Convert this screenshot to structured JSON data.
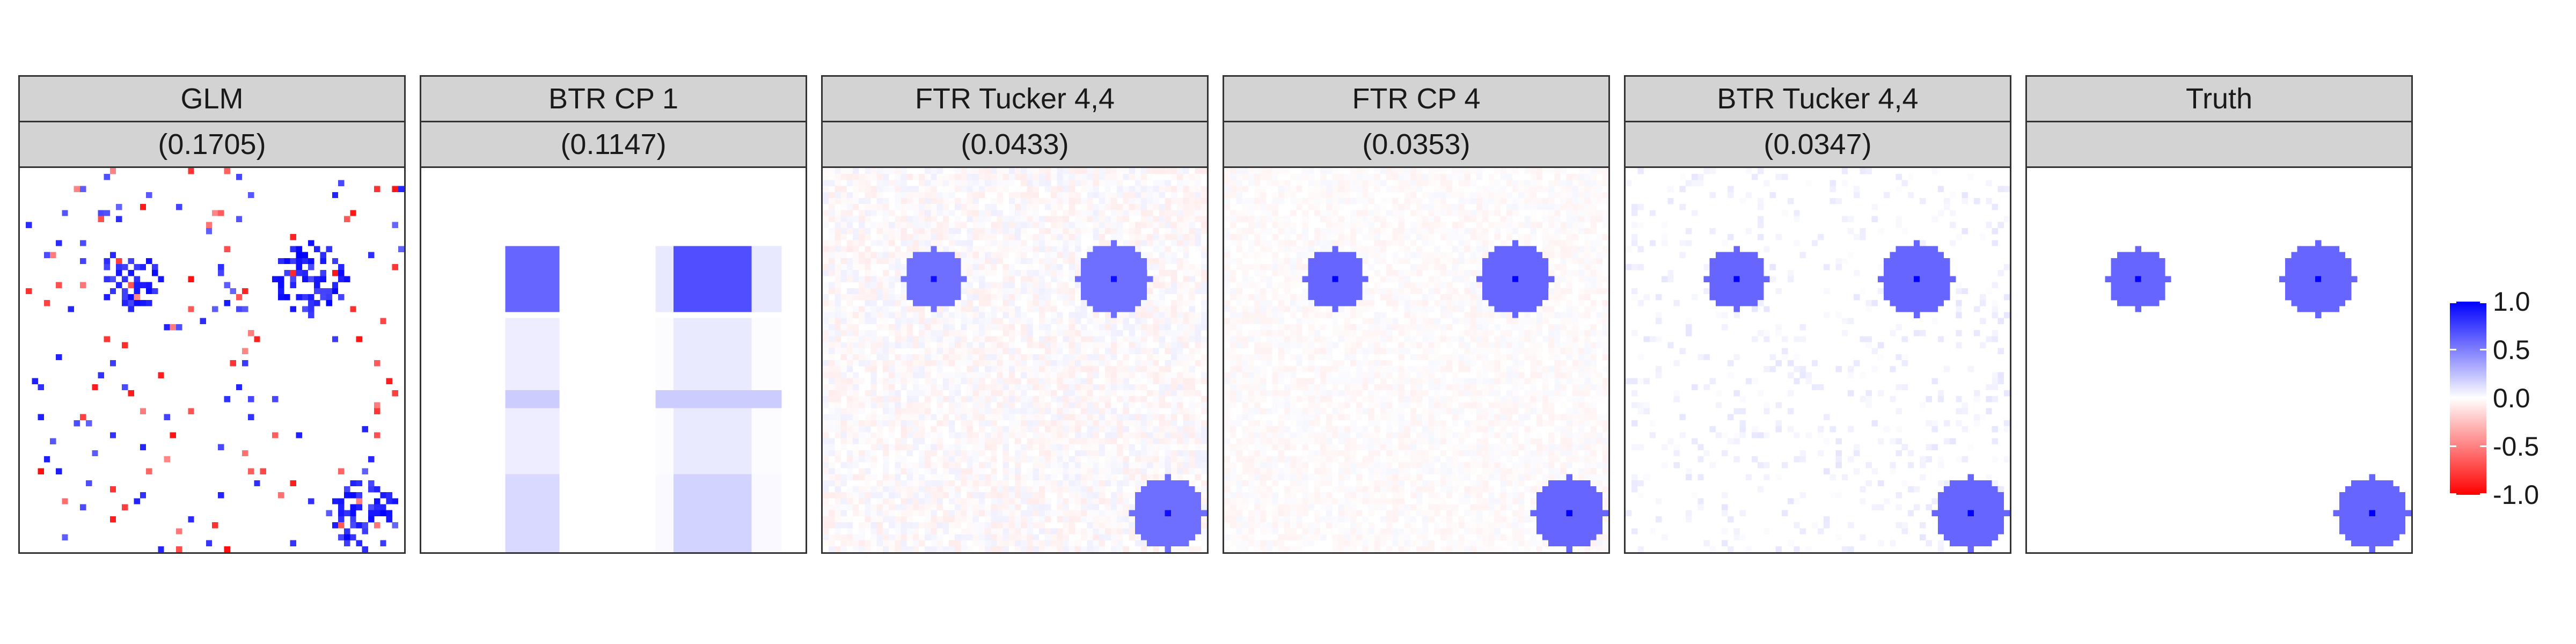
{
  "chart_data": {
    "type": "heatmap",
    "grid_size": 64,
    "color_scale": {
      "low": "#ff0000",
      "mid": "#ffffff",
      "high": "#0000ff",
      "limits": [
        -1.0,
        1.0
      ],
      "breaks": [
        "1.0",
        "0.5",
        "0.0",
        "-0.5",
        "-1.0"
      ]
    },
    "panels": [
      {
        "method": "GLM",
        "error": "(0.1705)"
      },
      {
        "method": "BTR CP 1",
        "error": "(0.1147)"
      },
      {
        "method": "FTR Tucker 4,4",
        "error": "(0.0433)"
      },
      {
        "method": "FTR CP 4",
        "error": "(0.0353)"
      },
      {
        "method": "BTR Tucker 4,4",
        "error": "(0.0347)"
      },
      {
        "method": "Truth",
        "error": ""
      }
    ],
    "signal_regions": [
      {
        "row": 18,
        "col": 18,
        "radius": 5,
        "value": 0.6
      },
      {
        "row": 18,
        "col": 48,
        "radius": 6,
        "value": 0.6
      },
      {
        "row": 57,
        "col": 57,
        "radius": 6,
        "value": 0.6
      }
    ]
  }
}
